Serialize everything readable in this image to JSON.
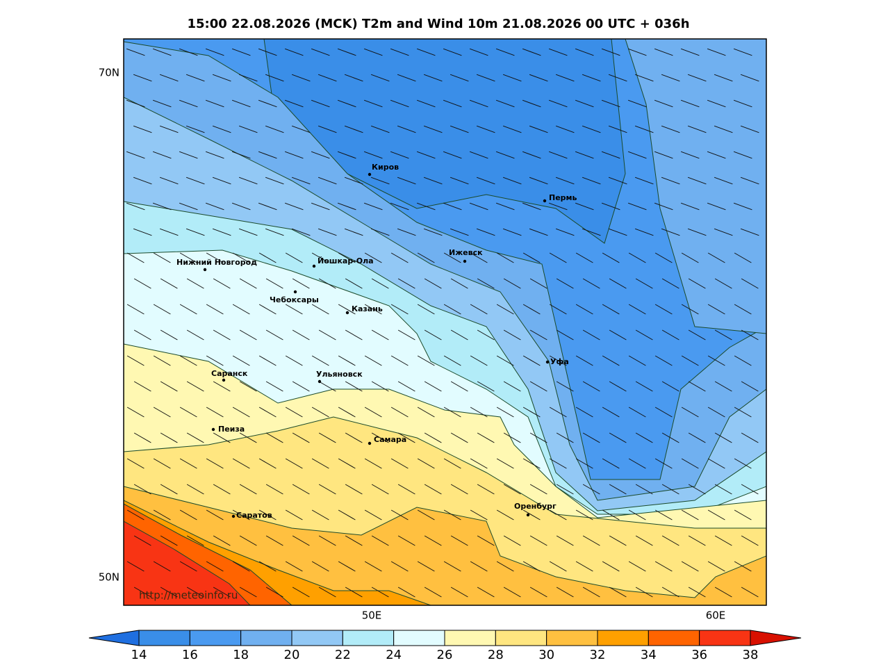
{
  "title": "15:00 22.08.2026 (MCK) T2m and Wind 10m 21.08.2026 00 UTC + 036h",
  "map": {
    "lat_labels": [
      "70N",
      "50N"
    ],
    "lon_labels": [
      "50E",
      "60E"
    ],
    "cities": [
      "Киров",
      "Пермь",
      "Нижний Новгород",
      "Йошкар-Ола",
      "Ижевск",
      "Чебоксары",
      "Казань",
      "Уфа",
      "Саранск",
      "Ульяновск",
      "Пеиза",
      "Самара",
      "Оренбург",
      "Саратов"
    ],
    "watermark": "http://meteoinfo.ru"
  },
  "colorbar": {
    "ticks": [
      14,
      16,
      18,
      20,
      22,
      24,
      26,
      28,
      30,
      32,
      34,
      36,
      38
    ],
    "colors": [
      "#1f6fe0",
      "#3a8ee8",
      "#4a9af0",
      "#70b0f0",
      "#92c8f5",
      "#b2ecf8",
      "#e2fcff",
      "#fff8b2",
      "#ffe680",
      "#ffc040",
      "#ffa000",
      "#ff6400",
      "#f83414",
      "#d81000"
    ]
  }
}
